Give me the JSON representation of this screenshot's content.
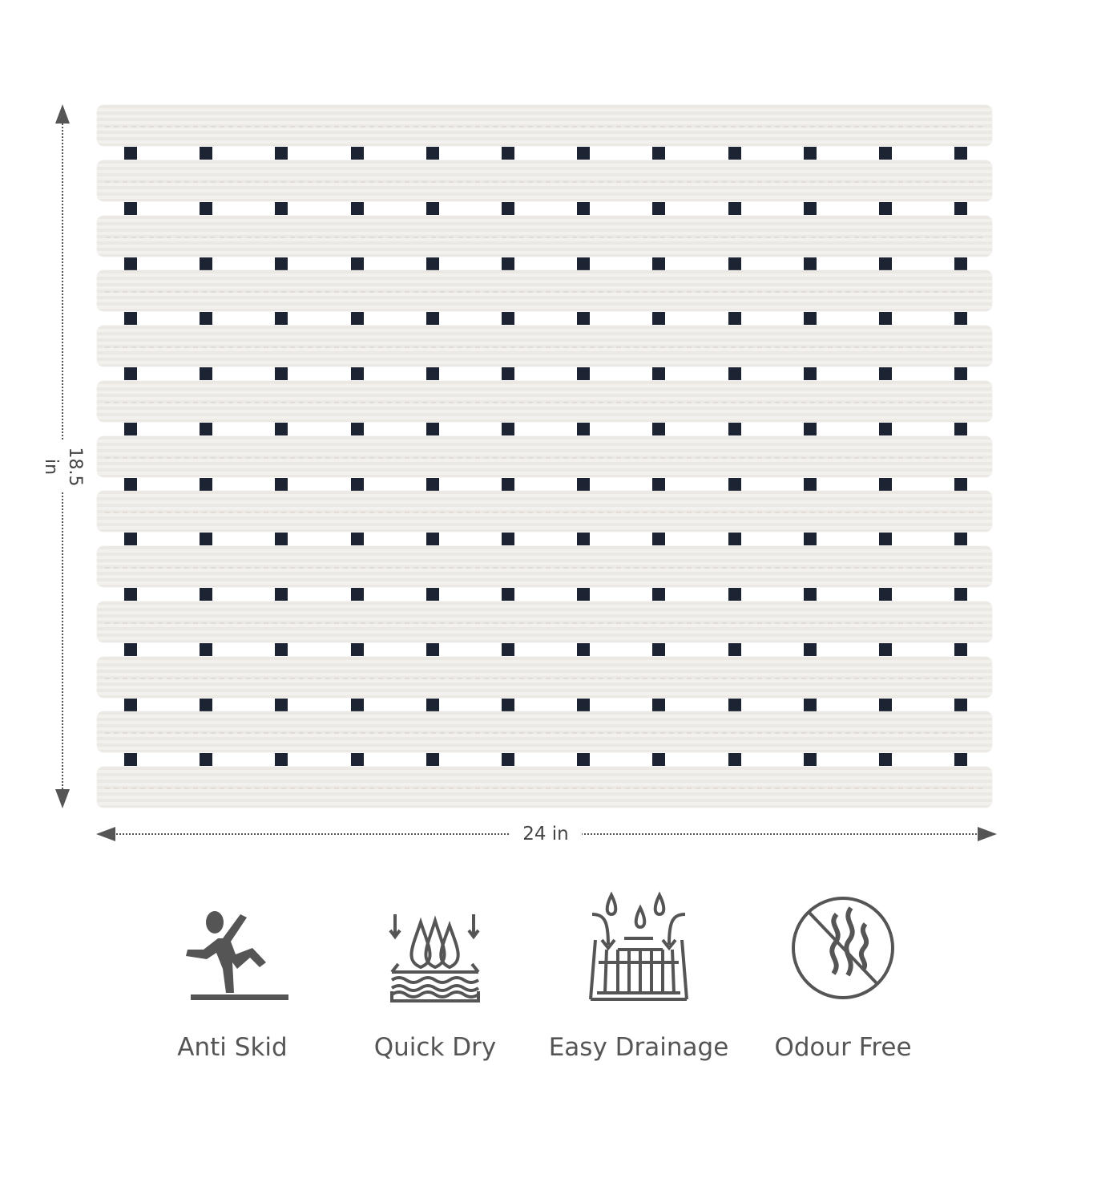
{
  "product": {
    "slat_count": 13,
    "peg_columns": 12,
    "slat_color": "#eeebe7",
    "peg_color": "#1c2433"
  },
  "dimensions": {
    "height_label": "18.5 in",
    "width_label": "24 in"
  },
  "features": [
    {
      "icon": "slipping-person-icon",
      "label": "Anti Skid"
    },
    {
      "icon": "water-drops-layers-icon",
      "label": "Quick Dry"
    },
    {
      "icon": "drain-grate-icon",
      "label": "Easy Drainage"
    },
    {
      "icon": "no-odour-icon",
      "label": "Odour Free"
    }
  ],
  "icon_color": "#555555"
}
